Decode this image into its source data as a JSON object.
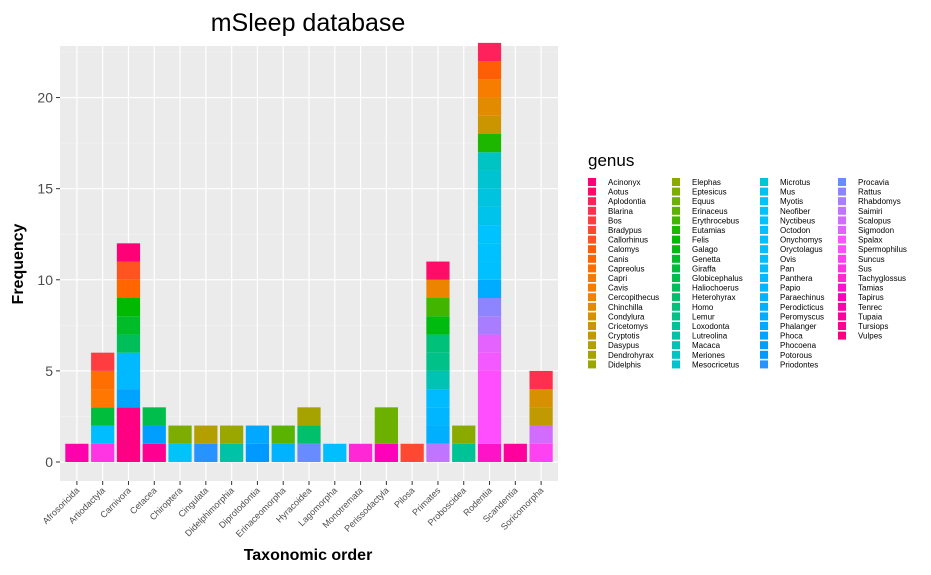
{
  "chart_data": {
    "type": "bar",
    "stacked": true,
    "title": "mSleep database",
    "xlabel": "Taxonomic order",
    "ylabel": "Frequency",
    "ylim": [
      0,
      22.5
    ],
    "yticks": [
      0,
      5,
      10,
      15,
      20
    ],
    "grid": true,
    "legend_title": "genus",
    "legend_position": "right",
    "categories": [
      "Afrosoricida",
      "Artiodactyla",
      "Carnivora",
      "Cetacea",
      "Chiroptera",
      "Cingulata",
      "Didelphimorphia",
      "Diprotodontia",
      "Erinaceomorpha",
      "Hyracoidea",
      "Lagomorpha",
      "Monotremata",
      "Perissodactyla",
      "Pilosa",
      "Primates",
      "Proboscidea",
      "Rodentia",
      "Scandentia",
      "Soricomorpha"
    ],
    "genera": [
      "Acinonyx",
      "Aotus",
      "Aplodontia",
      "Blarina",
      "Bos",
      "Bradypus",
      "Callorhinus",
      "Calomys",
      "Canis",
      "Capreolus",
      "Capri",
      "Cavis",
      "Cercopithecus",
      "Chinchilla",
      "Condylura",
      "Cricetomys",
      "Cryptotis",
      "Dasypus",
      "Dendrohyrax",
      "Didelphis",
      "Elephas",
      "Eptesicus",
      "Equus",
      "Erinaceus",
      "Erythrocebus",
      "Eutamias",
      "Felis",
      "Galago",
      "Genetta",
      "Giraffa",
      "Globicephalus",
      "Haliochoerus",
      "Heterohyrax",
      "Homo",
      "Lemur",
      "Loxodonta",
      "Lutreolina",
      "Macaca",
      "Meriones",
      "Mesocricetus",
      "Microtus",
      "Mus",
      "Myotis",
      "Neofiber",
      "Nyctibeus",
      "Octodon",
      "Onychomys",
      "Oryctolagus",
      "Ovis",
      "Pan",
      "Panthera",
      "Papio",
      "Paraechinus",
      "Perodicticus",
      "Peromyscus",
      "Phalanger",
      "Phoca",
      "Phocoena",
      "Potorous",
      "Priodontes",
      "Procavia",
      "Rattus",
      "Rhabdomys",
      "Saimiri",
      "Scalopus",
      "Sigmodon",
      "Spalax",
      "Spermophilus",
      "Suncus",
      "Sus",
      "Tachyglossus",
      "Tamias",
      "Tapirus",
      "Tenrec",
      "Tupaia",
      "Tursiops",
      "Vulpes"
    ],
    "stacks": {
      "Afrosoricida": [
        [
          "Tenrec",
          1
        ]
      ],
      "Artiodactyla": [
        [
          "Bos",
          1
        ],
        [
          "Capreolus",
          1
        ],
        [
          "Capri",
          1
        ],
        [
          "Giraffa",
          1
        ],
        [
          "Ovis",
          1
        ],
        [
          "Sus",
          1
        ]
      ],
      "Carnivora": [
        [
          "Acinonyx",
          1
        ],
        [
          "Callorhinus",
          1
        ],
        [
          "Canis",
          1
        ],
        [
          "Felis",
          1
        ],
        [
          "Genetta",
          1
        ],
        [
          "Haliochoerus",
          1
        ],
        [
          "Panthera",
          2
        ],
        [
          "Phoca",
          1
        ],
        [
          "Vulpes",
          3
        ]
      ],
      "Cetacea": [
        [
          "Globicephalus",
          1
        ],
        [
          "Phocoena",
          1
        ],
        [
          "Tursiops",
          1
        ]
      ],
      "Chiroptera": [
        [
          "Eptesicus",
          1
        ],
        [
          "Myotis",
          1
        ]
      ],
      "Cingulata": [
        [
          "Dasypus",
          1
        ],
        [
          "Priodontes",
          1
        ]
      ],
      "Didelphimorphia": [
        [
          "Didelphis",
          1
        ],
        [
          "Lutreolina",
          1
        ]
      ],
      "Diprotodontia": [
        [
          "Phalanger",
          1
        ],
        [
          "Potorous",
          1
        ]
      ],
      "Erinaceomorpha": [
        [
          "Erinaceus",
          1
        ],
        [
          "Paraechinus",
          1
        ]
      ],
      "Hyracoidea": [
        [
          "Dendrohyrax",
          1
        ],
        [
          "Heterohyrax",
          1
        ],
        [
          "Procavia",
          1
        ]
      ],
      "Lagomorpha": [
        [
          "Oryctolagus",
          1
        ]
      ],
      "Monotremata": [
        [
          "Tachyglossus",
          1
        ]
      ],
      "Perissodactyla": [
        [
          "Equus",
          2
        ],
        [
          "Tapirus",
          1
        ]
      ],
      "Pilosa": [
        [
          "Bradypus",
          1
        ]
      ],
      "Primates": [
        [
          "Aotus",
          1
        ],
        [
          "Cercopithecus",
          1
        ],
        [
          "Erythrocebus",
          1
        ],
        [
          "Galago",
          1
        ],
        [
          "Homo",
          1
        ],
        [
          "Lemur",
          1
        ],
        [
          "Macaca",
          1
        ],
        [
          "Pan",
          1
        ],
        [
          "Papio",
          1
        ],
        [
          "Perodicticus",
          1
        ],
        [
          "Saimiri",
          1
        ],
        [
          "Vulpes",
          0
        ]
      ],
      "Proboscidea": [
        [
          "Elephas",
          1
        ],
        [
          "Loxodonta",
          1
        ]
      ],
      "Rodentia": [
        [
          "Aplodontia",
          1
        ],
        [
          "Calomys",
          1
        ],
        [
          "Cavis",
          1
        ],
        [
          "Chinchilla",
          1
        ],
        [
          "Cricetomys",
          1
        ],
        [
          "Eutamias",
          1
        ],
        [
          "Meriones",
          1
        ],
        [
          "Mesocricetus",
          1
        ],
        [
          "Microtus",
          1
        ],
        [
          "Mus",
          1
        ],
        [
          "Neofiber",
          1
        ],
        [
          "Octodon",
          1
        ],
        [
          "Onychomys",
          1
        ],
        [
          "Peromyscus",
          1
        ],
        [
          "Rattus",
          1
        ],
        [
          "Rhabdomys",
          1
        ],
        [
          "Sigmodon",
          1
        ],
        [
          "Spalax",
          1
        ],
        [
          "Spermophilus",
          4
        ],
        [
          "Tamias",
          1
        ]
      ],
      "Scandentia": [
        [
          "Tupaia",
          1
        ]
      ],
      "Soricomorpha": [
        [
          "Blarina",
          1
        ],
        [
          "Condylura",
          1
        ],
        [
          "Cryptotis",
          1
        ],
        [
          "Scalopus",
          1
        ],
        [
          "Suncus",
          1
        ]
      ]
    }
  }
}
